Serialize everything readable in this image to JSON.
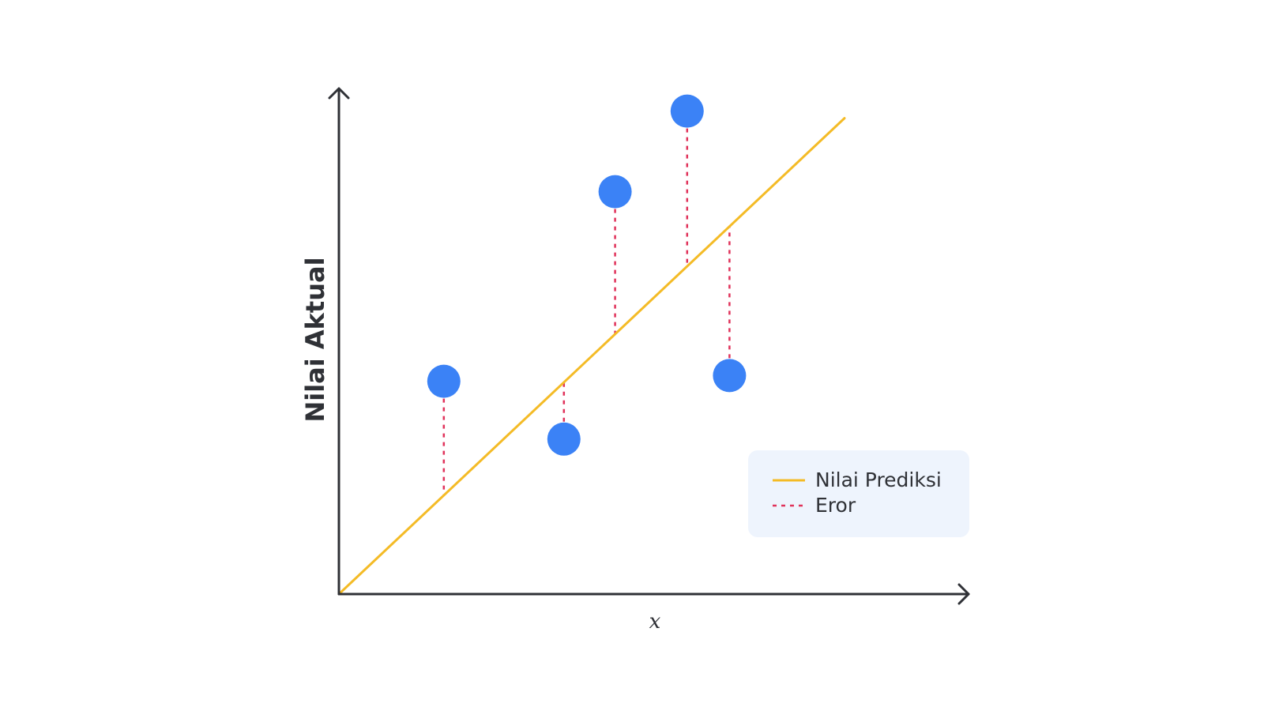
{
  "chart_data": {
    "type": "scatter",
    "title": "",
    "xlabel": "x",
    "ylabel": "Nilai Aktual",
    "xlim": [
      0,
      10
    ],
    "ylim": [
      0,
      10
    ],
    "grid": false,
    "legend_position": "bottom-right",
    "points": [
      {
        "x": 1.66,
        "y": 4.49
      },
      {
        "x": 3.56,
        "y": 3.27
      },
      {
        "x": 4.37,
        "y": 8.49
      },
      {
        "x": 5.51,
        "y": 10.19
      },
      {
        "x": 6.18,
        "y": 4.61
      }
    ],
    "prediction_line": {
      "x": [
        0,
        8.0
      ],
      "y": [
        0,
        10.04
      ]
    },
    "series": [
      {
        "name": "Nilai Prediksi",
        "style": "solid-line",
        "color": "#f4bb26"
      },
      {
        "name": "Eror",
        "style": "dashed-line",
        "color": "#e0325a"
      }
    ],
    "point_color": "#3b82f6"
  }
}
